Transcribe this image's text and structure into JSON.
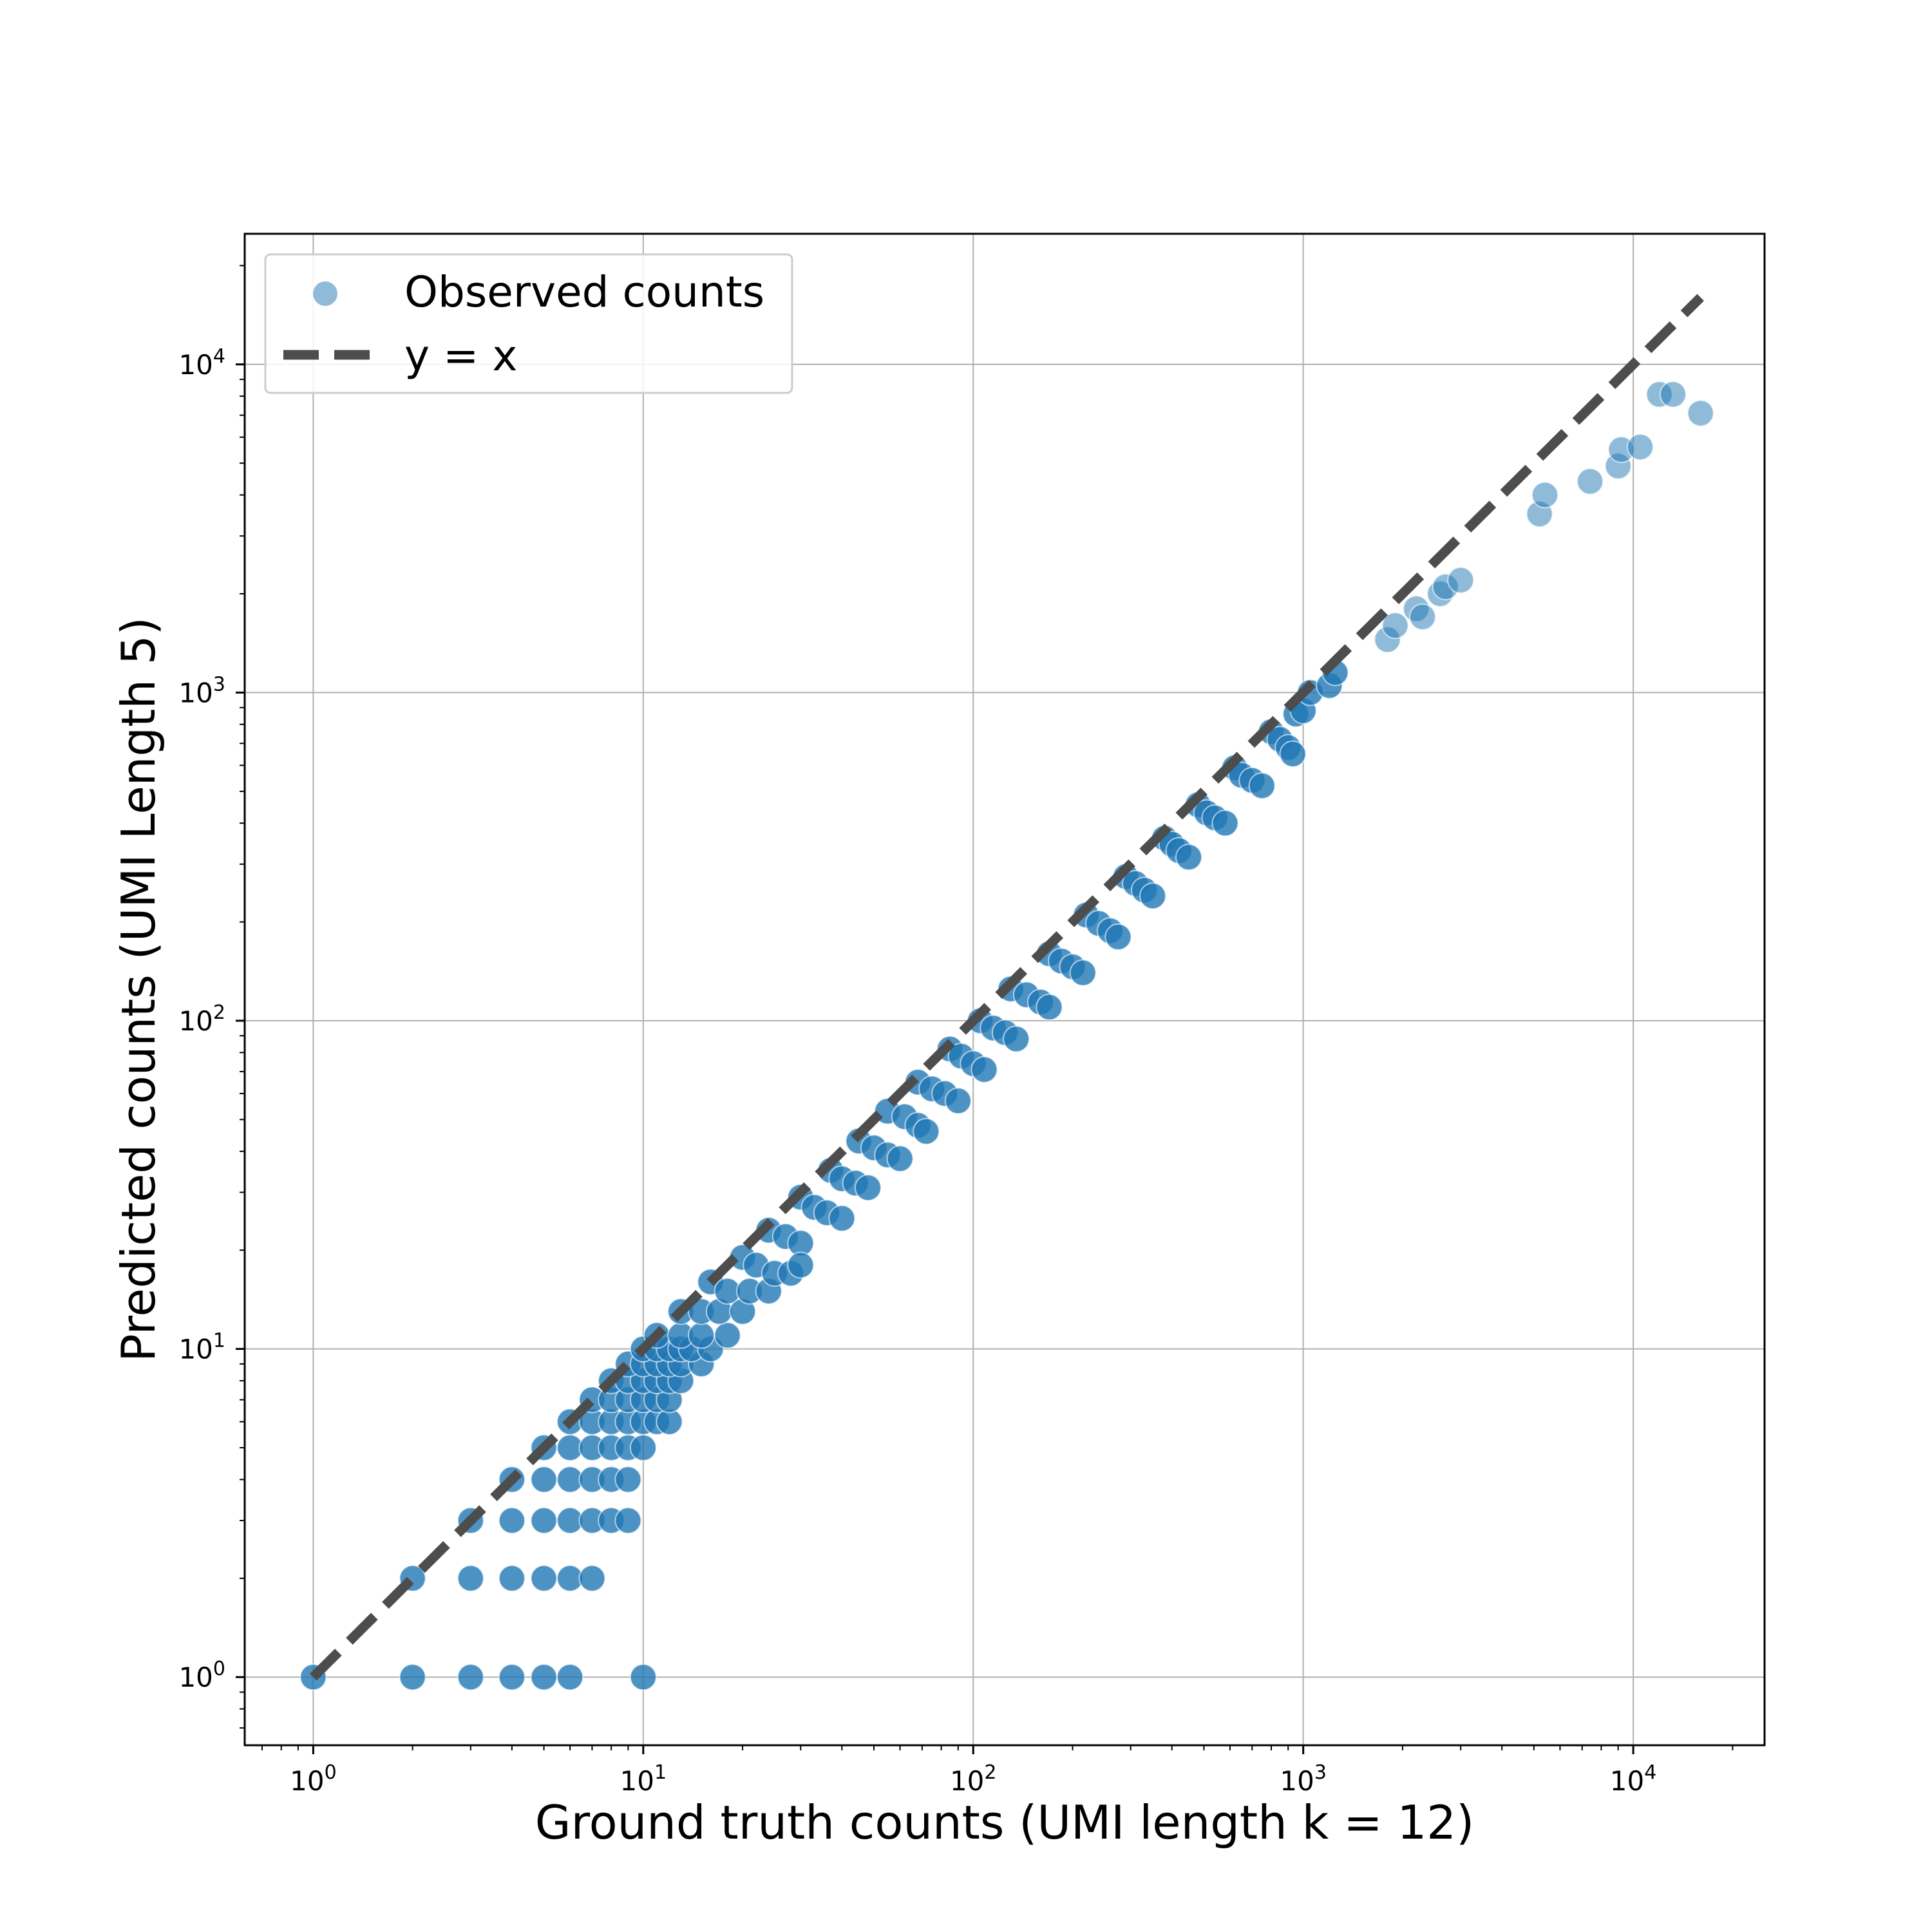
{
  "chart_data": {
    "type": "scatter",
    "xlabel": "Ground truth counts (UMI length k = 12)",
    "ylabel": "Predicted counts (UMI Length 5)",
    "xscale": "log",
    "yscale": "log",
    "xlim": [
      0.62,
      25000
    ],
    "ylim": [
      0.62,
      25000
    ],
    "xticks": [
      1,
      10,
      100,
      1000,
      10000
    ],
    "yticks": [
      1,
      10,
      100,
      1000,
      10000
    ],
    "xtick_labels": [
      {
        "base": "10",
        "exp": "0"
      },
      {
        "base": "10",
        "exp": "1"
      },
      {
        "base": "10",
        "exp": "2"
      },
      {
        "base": "10",
        "exp": "3"
      },
      {
        "base": "10",
        "exp": "4"
      }
    ],
    "ytick_labels": [
      {
        "base": "10",
        "exp": "0"
      },
      {
        "base": "10",
        "exp": "1"
      },
      {
        "base": "10",
        "exp": "2"
      },
      {
        "base": "10",
        "exp": "3"
      },
      {
        "base": "10",
        "exp": "4"
      }
    ],
    "grid": true,
    "legend_position": "top-left",
    "legend": [
      "Observed counts",
      "y = x"
    ],
    "colors": {
      "points": "#1f77b4",
      "reference_line": "#4d4d4d",
      "grid": "#b0b0b0"
    },
    "series": [
      {
        "name": "Observed counts",
        "kind": "scatter",
        "points": [
          [
            1,
            1
          ],
          [
            2,
            1
          ],
          [
            3,
            1
          ],
          [
            4,
            1
          ],
          [
            5,
            1
          ],
          [
            6,
            1
          ],
          [
            10,
            1
          ],
          [
            2,
            2
          ],
          [
            3,
            2
          ],
          [
            4,
            2
          ],
          [
            5,
            2
          ],
          [
            6,
            2
          ],
          [
            7,
            2
          ],
          [
            3,
            3
          ],
          [
            4,
            3
          ],
          [
            5,
            3
          ],
          [
            6,
            3
          ],
          [
            7,
            3
          ],
          [
            8,
            3
          ],
          [
            9,
            3
          ],
          [
            4,
            4
          ],
          [
            5,
            4
          ],
          [
            6,
            4
          ],
          [
            7,
            4
          ],
          [
            8,
            4
          ],
          [
            9,
            4
          ],
          [
            5,
            5
          ],
          [
            6,
            5
          ],
          [
            7,
            5
          ],
          [
            8,
            5
          ],
          [
            9,
            5
          ],
          [
            10,
            5
          ],
          [
            6,
            6
          ],
          [
            7,
            6
          ],
          [
            8,
            6
          ],
          [
            9,
            6
          ],
          [
            10,
            6
          ],
          [
            11,
            6
          ],
          [
            12,
            6
          ],
          [
            7,
            7
          ],
          [
            8,
            7
          ],
          [
            9,
            7
          ],
          [
            10,
            7
          ],
          [
            11,
            7
          ],
          [
            12,
            7
          ],
          [
            8,
            8
          ],
          [
            9,
            8
          ],
          [
            10,
            8
          ],
          [
            11,
            8
          ],
          [
            12,
            8
          ],
          [
            13,
            8
          ],
          [
            9,
            9
          ],
          [
            10,
            9
          ],
          [
            11,
            9
          ],
          [
            12,
            9
          ],
          [
            13,
            9
          ],
          [
            15,
            9
          ],
          [
            10,
            10
          ],
          [
            11,
            10
          ],
          [
            12,
            10
          ],
          [
            13,
            10
          ],
          [
            14,
            10
          ],
          [
            16,
            10
          ],
          [
            11,
            11
          ],
          [
            13,
            11
          ],
          [
            15,
            11
          ],
          [
            18,
            11
          ],
          [
            13,
            13
          ],
          [
            15,
            13
          ],
          [
            17,
            13
          ],
          [
            20,
            13
          ],
          [
            16,
            16
          ],
          [
            18,
            15
          ],
          [
            21,
            15
          ],
          [
            24,
            15
          ],
          [
            20,
            19
          ],
          [
            22,
            18
          ],
          [
            25,
            17
          ],
          [
            28,
            17
          ],
          [
            24,
            23
          ],
          [
            27,
            22
          ],
          [
            30,
            21
          ],
          [
            30,
            18
          ],
          [
            30,
            29
          ],
          [
            33,
            27
          ],
          [
            36,
            26
          ],
          [
            40,
            25
          ],
          [
            37,
            35
          ],
          [
            40,
            33
          ],
          [
            44,
            32
          ],
          [
            48,
            31
          ],
          [
            45,
            43
          ],
          [
            50,
            41
          ],
          [
            55,
            39
          ],
          [
            60,
            38
          ],
          [
            55,
            53
          ],
          [
            62,
            51
          ],
          [
            68,
            48
          ],
          [
            72,
            46
          ],
          [
            68,
            65
          ],
          [
            75,
            62
          ],
          [
            82,
            60
          ],
          [
            90,
            57
          ],
          [
            85,
            82
          ],
          [
            92,
            78
          ],
          [
            100,
            74
          ],
          [
            108,
            71
          ],
          [
            105,
            100
          ],
          [
            115,
            95
          ],
          [
            125,
            92
          ],
          [
            135,
            88
          ],
          [
            130,
            125
          ],
          [
            145,
            120
          ],
          [
            160,
            114
          ],
          [
            170,
            110
          ],
          [
            170,
            160
          ],
          [
            185,
            152
          ],
          [
            200,
            146
          ],
          [
            215,
            140
          ],
          [
            220,
            210
          ],
          [
            240,
            198
          ],
          [
            260,
            188
          ],
          [
            275,
            180
          ],
          [
            290,
            275
          ],
          [
            310,
            262
          ],
          [
            330,
            250
          ],
          [
            350,
            240
          ],
          [
            380,
            360
          ],
          [
            400,
            345
          ],
          [
            420,
            330
          ],
          [
            450,
            315
          ],
          [
            480,
            455
          ],
          [
            510,
            430
          ],
          [
            540,
            415
          ],
          [
            580,
            400
          ],
          [
            620,
            590
          ],
          [
            650,
            560
          ],
          [
            700,
            540
          ],
          [
            750,
            520
          ],
          [
            800,
            760
          ],
          [
            850,
            720
          ],
          [
            900,
            680
          ],
          [
            930,
            650
          ],
          [
            950,
            860
          ],
          [
            1000,
            880
          ],
          [
            1050,
            1000
          ],
          [
            1200,
            1050
          ],
          [
            1250,
            1150
          ],
          [
            1800,
            1450
          ],
          [
            1900,
            1600
          ],
          [
            2200,
            1800
          ],
          [
            2300,
            1700
          ],
          [
            2600,
            2000
          ],
          [
            2700,
            2100
          ],
          [
            3000,
            2200
          ],
          [
            5200,
            3500
          ],
          [
            5400,
            4000
          ],
          [
            7400,
            4400
          ],
          [
            9000,
            4900
          ],
          [
            9200,
            5500
          ],
          [
            10500,
            5600
          ],
          [
            12000,
            8100
          ],
          [
            13200,
            8100
          ],
          [
            16000,
            7100
          ]
        ]
      },
      {
        "name": "y = x",
        "kind": "line",
        "points": [
          [
            1,
            1
          ],
          [
            16000,
            16000
          ]
        ]
      }
    ]
  }
}
